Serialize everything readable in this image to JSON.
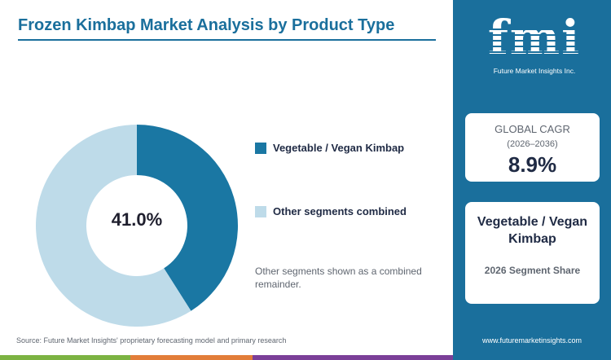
{
  "header": {
    "title": "Frozen Kimbap Market Analysis by Product Type"
  },
  "chart_data": {
    "type": "pie",
    "variant": "donut",
    "slices": [
      {
        "label": "Vegetable / Vegan Kimbap",
        "value": 41.0,
        "color": "#1a77a3"
      },
      {
        "label": "Other segments combined",
        "value": 59.0,
        "color": "#bedbe9"
      }
    ],
    "center_label": "41.0%",
    "legend_position": "right"
  },
  "legend": {
    "items": [
      {
        "label": "Vegetable / Vegan Kimbap",
        "color": "#1a77a3"
      },
      {
        "label": "Other segments combined",
        "color": "#bedbe9"
      }
    ]
  },
  "note": "Other segments shown as a combined remainder.",
  "source": "Source: Future Market Insights' proprietary forecasting model and primary research",
  "sidebar": {
    "logo_text": "fmi",
    "logo_tagline": "Future Market Insights Inc.",
    "cagr": {
      "label": "GLOBAL CAGR",
      "period": "(2026–2036)",
      "value": "8.9%"
    },
    "segment": {
      "name": "Vegetable / Vegan Kimbap",
      "caption": "2026 Segment Share"
    },
    "website": "www.futuremarketinsights.com"
  },
  "colors": {
    "brand": "#1a6f9c",
    "primary_slice": "#1a77a3",
    "secondary_slice": "#bedbe9",
    "strip": [
      "#7cb342",
      "#e27d39",
      "#7b3f98"
    ]
  }
}
